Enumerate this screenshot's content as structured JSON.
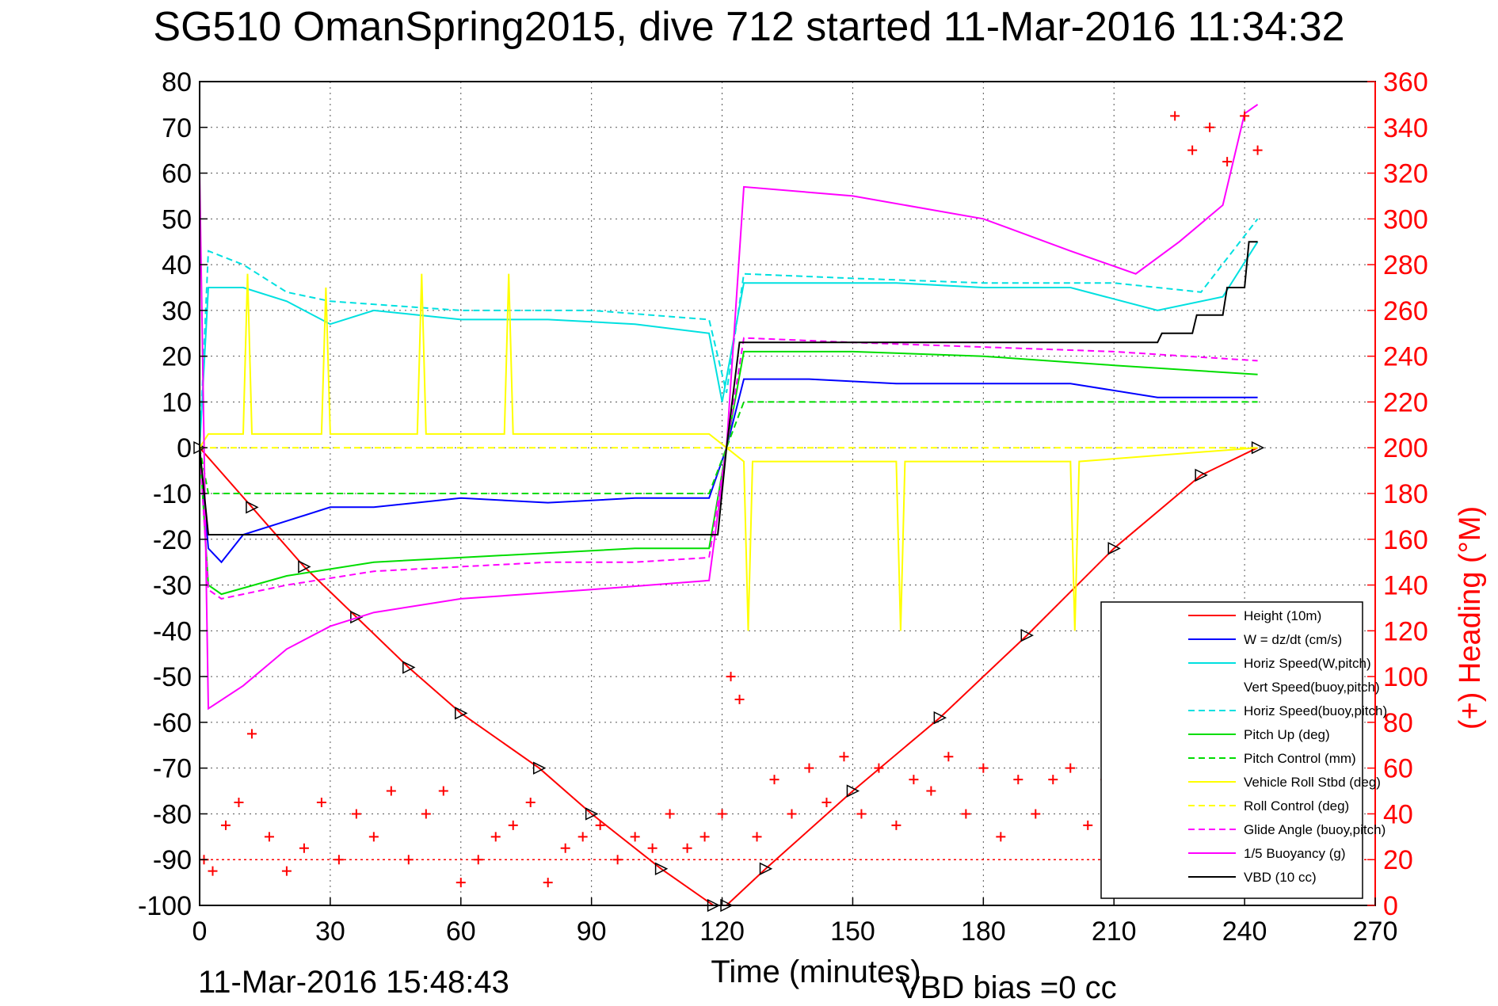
{
  "title": "SG510 OmanSpring2015, dive 712 started 11-Mar-2016 11:34:32",
  "footer": {
    "end_time": "11-Mar-2016 15:48:43",
    "vbd_bias": "VBD bias =0 cc"
  },
  "colors": {
    "height": "#ff0000",
    "w": "#0000ff",
    "horiz": "#00e0e0",
    "pitch": "#00dd00",
    "roll": "#ffff00",
    "glide": "#ff00ff",
    "buoy": "#ff00ff",
    "vbd": "#000000",
    "heading": "#ff0000",
    "grid": "#555555",
    "axis": "#000000",
    "right_axis": "#ff0000"
  },
  "chart_data": {
    "type": "line",
    "title": "SG510 OmanSpring2015, dive 712 started 11-Mar-2016 11:34:32",
    "xlabel": "Time (minutes)",
    "ylabel": "",
    "y2label": "(+) Heading (°M)",
    "xlim": [
      0,
      270
    ],
    "ylim": [
      -100,
      80
    ],
    "y2lim": [
      0,
      360
    ],
    "xticks": [
      "0",
      "30",
      "60",
      "90",
      "120",
      "150",
      "180",
      "210",
      "240",
      "270"
    ],
    "yticks": [
      "-100",
      "-90",
      "-80",
      "-70",
      "-60",
      "-50",
      "-40",
      "-30",
      "-20",
      "-10",
      "0",
      "10",
      "20",
      "30",
      "40",
      "50",
      "60",
      "70",
      "80"
    ],
    "y2ticks": [
      "0",
      "20",
      "40",
      "60",
      "80",
      "100",
      "120",
      "140",
      "160",
      "180",
      "200",
      "220",
      "240",
      "260",
      "280",
      "300",
      "320",
      "340",
      "360"
    ],
    "grid": true,
    "legend_position": "lower-right",
    "series": [
      {
        "name": "Height (10m)",
        "key": "height",
        "style": "solid",
        "x": [
          0,
          12,
          24,
          36,
          48,
          60,
          78,
          90,
          106,
          118,
          121,
          130,
          150,
          170,
          190,
          210,
          230,
          243
        ],
        "y": [
          0,
          -13,
          -26,
          -37,
          -48,
          -58,
          -70,
          -80,
          -92,
          -100,
          -100,
          -92,
          -75,
          -59,
          -41,
          -22,
          -6,
          0
        ]
      },
      {
        "name": "W = dz/dt (cm/s)",
        "key": "w",
        "style": "solid",
        "x": [
          0,
          2,
          5,
          10,
          20,
          30,
          40,
          60,
          80,
          100,
          117,
          121,
          125,
          140,
          160,
          180,
          200,
          220,
          243
        ],
        "y": [
          0,
          -22,
          -25,
          -19,
          -16,
          -13,
          -13,
          -11,
          -12,
          -11,
          -11,
          0,
          15,
          15,
          14,
          14,
          14,
          11,
          11
        ]
      },
      {
        "name": "Horiz Speed(W,pitch)",
        "key": "horiz",
        "style": "solid",
        "x": [
          0,
          2,
          10,
          20,
          30,
          40,
          60,
          80,
          100,
          117,
          120,
          125,
          140,
          160,
          180,
          200,
          220,
          235,
          243
        ],
        "y": [
          0,
          35,
          35,
          32,
          27,
          30,
          28,
          28,
          27,
          25,
          10,
          36,
          36,
          36,
          35,
          35,
          30,
          33,
          45
        ]
      },
      {
        "name": "Vert Speed(buoy,pitch)",
        "key": "vert",
        "style": "dashed",
        "x": [
          0,
          2,
          5,
          20,
          40,
          60,
          80,
          100,
          117,
          121,
          125,
          140,
          160,
          180,
          200,
          220,
          243
        ],
        "y": [
          0,
          -28,
          -30,
          -17,
          -14,
          -12,
          -13,
          -12,
          -12,
          0,
          17,
          16,
          16,
          15,
          15,
          12,
          12
        ]
      },
      {
        "name": "Horiz Speed(buoy,pitch)",
        "key": "horiz",
        "style": "dashed",
        "x": [
          0,
          2,
          10,
          20,
          30,
          60,
          90,
          117,
          121,
          125,
          150,
          180,
          210,
          230,
          243
        ],
        "y": [
          0,
          43,
          40,
          34,
          32,
          30,
          30,
          28,
          12,
          38,
          37,
          36,
          36,
          34,
          50
        ]
      },
      {
        "name": "Pitch Up (deg)",
        "key": "pitch",
        "style": "solid",
        "x": [
          0,
          2,
          5,
          20,
          40,
          60,
          80,
          100,
          117,
          121,
          125,
          150,
          180,
          210,
          243
        ],
        "y": [
          0,
          -30,
          -32,
          -28,
          -25,
          -24,
          -23,
          -22,
          -22,
          0,
          21,
          21,
          20,
          18,
          16
        ]
      },
      {
        "name": "Pitch Control (mm)",
        "key": "pitch",
        "style": "dashed",
        "x": [
          0,
          2,
          117,
          121,
          125,
          243
        ],
        "y": [
          0,
          -10,
          -10,
          0,
          10,
          10
        ]
      },
      {
        "name": "Vehicle Roll Stbd (deg)",
        "key": "roll",
        "style": "solid",
        "x": [
          0,
          2,
          10,
          11,
          12,
          28,
          29,
          30,
          50,
          51,
          52,
          70,
          71,
          72,
          117,
          121,
          125,
          126,
          127,
          160,
          161,
          162,
          200,
          201,
          202,
          243
        ],
        "y": [
          0,
          3,
          3,
          38,
          3,
          3,
          35,
          3,
          3,
          38,
          3,
          3,
          38,
          3,
          3,
          0,
          -3,
          -40,
          -3,
          -3,
          -40,
          -3,
          -3,
          -40,
          -3,
          0
        ]
      },
      {
        "name": "Roll Control (deg)",
        "key": "roll",
        "style": "dashed",
        "x": [
          0,
          2,
          117,
          121,
          125,
          243
        ],
        "y": [
          0,
          0,
          0,
          0,
          0,
          0
        ]
      },
      {
        "name": "Glide Angle (buoy,pitch)",
        "key": "glide",
        "style": "dashed",
        "x": [
          0,
          2,
          5,
          20,
          40,
          60,
          80,
          100,
          117,
          121,
          125,
          150,
          180,
          210,
          243
        ],
        "y": [
          0,
          -31,
          -33,
          -30,
          -27,
          -26,
          -25,
          -25,
          -24,
          0,
          24,
          23,
          22,
          21,
          19
        ]
      },
      {
        "name": "1/5 Buoyancy (g)",
        "key": "buoy",
        "style": "solid",
        "x": [
          0,
          2,
          10,
          20,
          30,
          40,
          60,
          90,
          117,
          121,
          125,
          150,
          180,
          200,
          215,
          225,
          235,
          240,
          243
        ],
        "y": [
          60,
          -57,
          -52,
          -44,
          -39,
          -36,
          -33,
          -31,
          -29,
          0,
          57,
          55,
          50,
          43,
          38,
          45,
          53,
          73,
          75
        ]
      },
      {
        "name": "VBD (10 cc)",
        "key": "vbd",
        "style": "solid",
        "x": [
          0,
          2,
          119,
          121,
          124,
          125,
          220,
          221,
          228,
          229,
          235,
          236,
          240,
          241,
          243
        ],
        "y": [
          0,
          -19,
          -19,
          0,
          23,
          23,
          23,
          25,
          25,
          29,
          29,
          35,
          35,
          45,
          45
        ]
      }
    ],
    "heading": {
      "name": "(+) Heading (°M)",
      "marker": "+",
      "x": [
        1,
        3,
        6,
        9,
        12,
        16,
        20,
        24,
        28,
        32,
        36,
        40,
        44,
        48,
        52,
        56,
        60,
        64,
        68,
        72,
        76,
        80,
        84,
        88,
        92,
        96,
        100,
        104,
        108,
        112,
        116,
        120,
        122,
        124,
        128,
        132,
        136,
        140,
        144,
        148,
        152,
        156,
        160,
        164,
        168,
        172,
        176,
        180,
        184,
        188,
        192,
        196,
        200,
        204,
        208,
        212,
        216,
        220,
        224,
        228,
        232,
        236,
        240,
        243
      ],
      "y": [
        20,
        15,
        35,
        45,
        75,
        30,
        15,
        25,
        45,
        20,
        40,
        30,
        50,
        20,
        40,
        50,
        10,
        20,
        30,
        35,
        45,
        10,
        25,
        30,
        35,
        20,
        30,
        25,
        40,
        25,
        30,
        40,
        100,
        90,
        30,
        55,
        40,
        60,
        45,
        65,
        40,
        60,
        35,
        55,
        50,
        65,
        40,
        60,
        30,
        55,
        40,
        55,
        60,
        35,
        55,
        40,
        50,
        55,
        345,
        330,
        340,
        325,
        345,
        330
      ]
    }
  }
}
